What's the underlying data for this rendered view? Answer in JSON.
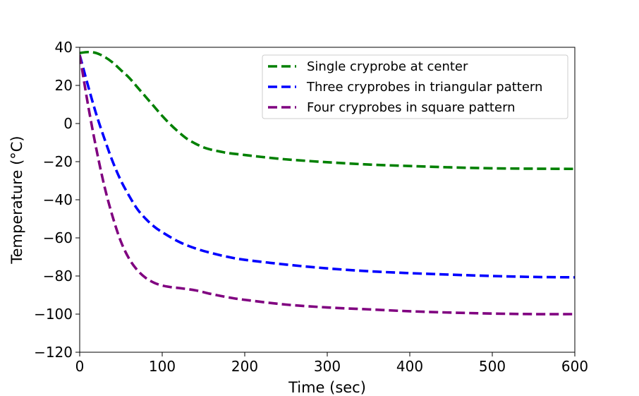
{
  "chart_data": {
    "type": "line",
    "xlabel": "Time (sec)",
    "ylabel": "Temperature (°C)",
    "xlim": [
      0,
      600
    ],
    "ylim": [
      -120,
      40
    ],
    "xticks": [
      0,
      100,
      200,
      300,
      400,
      500,
      600
    ],
    "xtick_labels": [
      "0",
      "100",
      "200",
      "300",
      "400",
      "500",
      "600"
    ],
    "yticks": [
      40,
      20,
      0,
      -20,
      -40,
      -60,
      -80,
      -100,
      -120
    ],
    "ytick_labels": [
      "40",
      "20",
      "0",
      "−20",
      "−40",
      "−60",
      "−80",
      "−100",
      "−120"
    ],
    "grid": false,
    "legend_position": "top-right",
    "series": [
      {
        "name": "Single cryprobe at center",
        "color": "#008000",
        "style": "dashed",
        "x": [
          0,
          10,
          20,
          30,
          40,
          50,
          60,
          70,
          80,
          90,
          100,
          110,
          120,
          130,
          140,
          150,
          160,
          170,
          180,
          200,
          220,
          250,
          300,
          350,
          400,
          450,
          500,
          550,
          600
        ],
        "y": [
          37,
          37.5,
          37,
          35,
          32,
          28,
          24,
          19,
          14,
          9,
          4,
          -0.5,
          -4.5,
          -8,
          -10.5,
          -12.5,
          -13.8,
          -14.7,
          -15.5,
          -16.5,
          -17.5,
          -18.8,
          -20.3,
          -21.5,
          -22.3,
          -23,
          -23.5,
          -23.7,
          -23.8
        ]
      },
      {
        "name": "Three cryprobes in triangular pattern",
        "color": "#0000ff",
        "style": "dashed",
        "x": [
          0,
          10,
          20,
          30,
          40,
          50,
          60,
          70,
          80,
          90,
          100,
          120,
          140,
          160,
          180,
          200,
          250,
          300,
          350,
          400,
          450,
          500,
          550,
          600
        ],
        "y": [
          36,
          20,
          5,
          -8,
          -20,
          -30,
          -38,
          -45,
          -50,
          -54,
          -57,
          -62,
          -65.5,
          -68,
          -70,
          -71.5,
          -74,
          -76,
          -77.5,
          -78.5,
          -79.3,
          -80,
          -80.5,
          -80.7
        ]
      },
      {
        "name": "Four cryprobes in square pattern",
        "color": "#800080",
        "style": "dashed",
        "x": [
          0,
          10,
          20,
          30,
          40,
          50,
          60,
          70,
          80,
          90,
          100,
          110,
          120,
          140,
          160,
          180,
          200,
          250,
          300,
          350,
          400,
          450,
          500,
          550,
          600
        ],
        "y": [
          36,
          10,
          -13,
          -33,
          -49,
          -62,
          -71,
          -77,
          -81,
          -83.5,
          -85,
          -85.8,
          -86.3,
          -87.5,
          -89.5,
          -91.2,
          -92.5,
          -95,
          -96.5,
          -97.5,
          -98.5,
          -99.2,
          -99.7,
          -100,
          -100
        ]
      }
    ]
  }
}
